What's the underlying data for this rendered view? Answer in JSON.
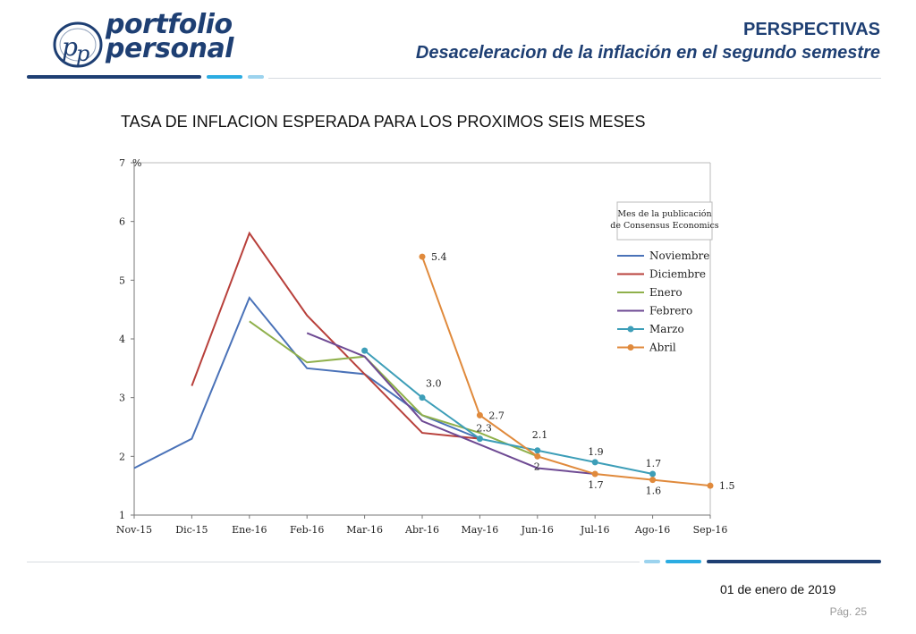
{
  "header": {
    "logo_line1": "portfolio",
    "logo_line2": "personal",
    "title": "PERSPECTIVAS",
    "subtitle": "Desaceleracion de la inflación en el segundo semestre"
  },
  "footer": {
    "date": "01 de enero de 2019",
    "page": "Pág. 25"
  },
  "colors": {
    "brand_dark": "#1e3f73",
    "brand_light": "#2bace2"
  },
  "chart_data": {
    "type": "line",
    "title": "TASA DE INFLACION ESPERADA PARA LOS PROXIMOS SEIS MESES",
    "ylabel": "%",
    "categories": [
      "Nov-15",
      "Dic-15",
      "Ene-16",
      "Feb-16",
      "Mar-16",
      "Abr-16",
      "May-16",
      "Jun-16",
      "Jul-16",
      "Ago-16",
      "Sep-16"
    ],
    "ylim": [
      1,
      7
    ],
    "yticks": [
      1,
      2,
      3,
      4,
      5,
      6,
      7
    ],
    "legend_title": "Mes de la publicación de Consensus Economics",
    "legend_title_lines": [
      "Mes de la publicación",
      "de Consensus Economics"
    ],
    "legend_position": "right",
    "grid": false,
    "series": [
      {
        "name": "Noviembre",
        "color": "#4a72b8",
        "marker": false,
        "values": [
          1.8,
          2.3,
          4.7,
          3.5,
          3.4,
          2.7,
          2.3,
          null,
          null,
          null,
          null
        ]
      },
      {
        "name": "Diciembre",
        "color": "#b8403b",
        "marker": false,
        "values": [
          null,
          3.2,
          5.8,
          4.4,
          3.4,
          2.4,
          2.3,
          null,
          null,
          null,
          null
        ]
      },
      {
        "name": "Enero",
        "color": "#8fb04b",
        "marker": false,
        "values": [
          null,
          null,
          4.3,
          3.6,
          3.7,
          2.7,
          2.4,
          2.0,
          null,
          null,
          null
        ]
      },
      {
        "name": "Febrero",
        "color": "#6e4a93",
        "marker": false,
        "values": [
          null,
          null,
          null,
          4.1,
          3.7,
          2.6,
          2.2,
          1.8,
          1.7,
          null,
          null
        ]
      },
      {
        "name": "Marzo",
        "color": "#3d9eb8",
        "marker": true,
        "values": [
          null,
          null,
          null,
          null,
          3.8,
          3.0,
          2.3,
          2.1,
          1.9,
          1.7,
          null
        ]
      },
      {
        "name": "Abril",
        "color": "#e08a3c",
        "marker": true,
        "values": [
          null,
          null,
          null,
          null,
          null,
          5.4,
          2.7,
          2.0,
          1.7,
          1.6,
          1.5
        ]
      }
    ],
    "annotations": [
      {
        "text": "5.4",
        "x": "Abr-16",
        "y": 5.4,
        "series": "Abril"
      },
      {
        "text": "3.0",
        "x": "Abr-16",
        "y": 3.0,
        "series": "Marzo"
      },
      {
        "text": "2.7",
        "x": "May-16",
        "y": 2.7,
        "series": "Abril"
      },
      {
        "text": "2.3",
        "x": "May-16",
        "y": 2.3,
        "series": "Marzo"
      },
      {
        "text": "2.1",
        "x": "Jun-16",
        "y": 2.1,
        "series": "Marzo"
      },
      {
        "text": "2",
        "x": "Jun-16",
        "y": 1.8,
        "series": "Febrero"
      },
      {
        "text": "1.9",
        "x": "Jul-16",
        "y": 1.9,
        "series": "Marzo"
      },
      {
        "text": "1.7",
        "x": "Jul-16",
        "y": 1.7,
        "series": "Abril"
      },
      {
        "text": "1.7",
        "x": "Ago-16",
        "y": 1.7,
        "series": "Marzo"
      },
      {
        "text": "1.6",
        "x": "Ago-16",
        "y": 1.6,
        "series": "Abril"
      },
      {
        "text": "1.5",
        "x": "Sep-16",
        "y": 1.5,
        "series": "Abril"
      }
    ]
  }
}
